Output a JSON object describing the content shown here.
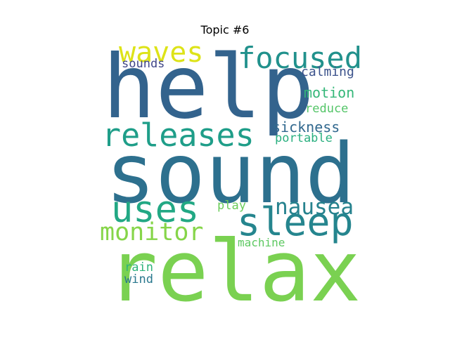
{
  "title": "Topic #6",
  "words": [
    {
      "key": "help",
      "text": "help",
      "color": "#33638d"
    },
    {
      "key": "sound",
      "text": "sound",
      "color": "#2d708e"
    },
    {
      "key": "relax",
      "text": "relax",
      "color": "#7ad151"
    },
    {
      "key": "releases",
      "text": "releases",
      "color": "#1f9e89"
    },
    {
      "key": "uses",
      "text": "uses",
      "color": "#22a884"
    },
    {
      "key": "sleep",
      "text": "sleep",
      "color": "#25858e"
    },
    {
      "key": "focused",
      "text": "focused",
      "color": "#21918c"
    },
    {
      "key": "waves",
      "text": "waves",
      "color": "#dde318"
    },
    {
      "key": "monitor",
      "text": "monitor",
      "color": "#86d549"
    },
    {
      "key": "nausea",
      "text": "nausea",
      "color": "#26828e"
    },
    {
      "key": "sounds",
      "text": "sounds",
      "color": "#404688"
    },
    {
      "key": "calming",
      "text": "calming",
      "color": "#3b528b"
    },
    {
      "key": "motion",
      "text": "motion",
      "color": "#35b779"
    },
    {
      "key": "reduce",
      "text": "reduce",
      "color": "#54c568"
    },
    {
      "key": "sickness",
      "text": "sickness",
      "color": "#31688e"
    },
    {
      "key": "portable",
      "text": "portable",
      "color": "#29af7f"
    },
    {
      "key": "play",
      "text": "play",
      "color": "#6ccd5a"
    },
    {
      "key": "machine",
      "text": "machine",
      "color": "#5ec962"
    },
    {
      "key": "rain",
      "text": "rain",
      "color": "#2eb37c"
    },
    {
      "key": "wind",
      "text": "wind",
      "color": "#2a788e"
    }
  ]
}
